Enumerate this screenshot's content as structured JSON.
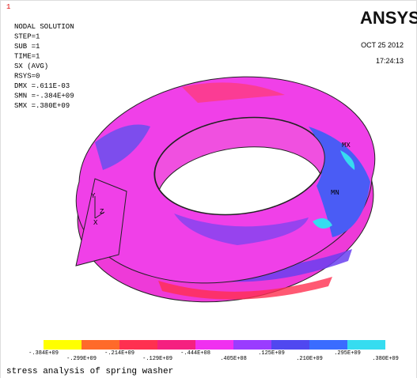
{
  "window_number": "1",
  "logo": "ANSYS",
  "info": [
    "NODAL SOLUTION",
    "STEP=1",
    "SUB =1",
    "TIME=1",
    "SX       (AVG)",
    "RSYS=0",
    "DMX =.611E-03",
    "SMN =-.384E+09",
    "SMX =.380E+09"
  ],
  "date": "OCT 25 2012",
  "time": "17:24:13",
  "model_labels": {
    "max": "MX",
    "min": "MN"
  },
  "triad": {
    "y": "Y",
    "z": "Z",
    "x": "X"
  },
  "legend": {
    "colors": [
      "#ffff00",
      "#ff6a2a",
      "#ff3050",
      "#f52080",
      "#f030f0",
      "#9a3cff",
      "#5048f0",
      "#3a6cff",
      "#36dcf0"
    ],
    "labels": [
      "-.384E+09",
      "-.299E+09",
      "-.214E+09",
      "-.129E+09",
      "-.444E+08",
      ".405E+08",
      ".125E+09",
      ".210E+09",
      ".295E+09",
      ".380E+09"
    ]
  },
  "caption": "stress analysis of spring washer"
}
